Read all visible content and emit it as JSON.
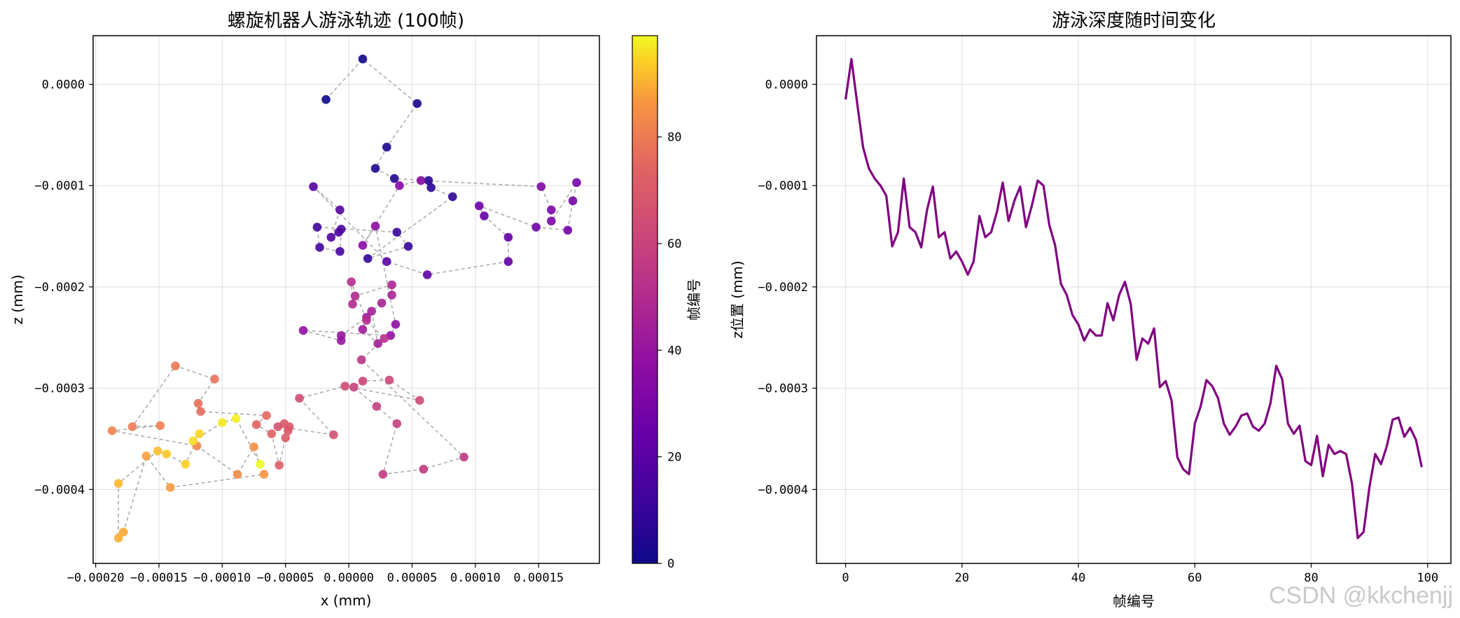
{
  "chart_data": [
    {
      "type": "scatter",
      "title": "螺旋机器人游泳轨迹 (100帧)",
      "xlabel": "x (mm)",
      "ylabel": "z (mm)",
      "xlim": [
        -0.000202,
        0.000198
      ],
      "ylim": [
        -0.000473,
        4.8e-05
      ],
      "x_ticks": [
        -0.0002,
        -0.00015,
        -0.0001,
        -5e-05,
        0.0,
        5e-05,
        0.0001,
        0.00015
      ],
      "x_tick_labels": [
        "−0.00020",
        "−0.00015",
        "−0.00010",
        "−0.00005",
        "0.00000",
        "0.00005",
        "0.00010",
        "0.00015"
      ],
      "y_ticks": [
        0.0,
        -0.0001,
        -0.0002,
        -0.0003,
        -0.0004
      ],
      "y_tick_labels": [
        "0.0000",
        "−0.0001",
        "−0.0002",
        "−0.0003",
        "−0.0004"
      ],
      "grid": true,
      "colormap": "plasma",
      "colorbar": {
        "label": "帧编号",
        "range": [
          0,
          99
        ],
        "ticks": [
          0,
          20,
          40,
          60,
          80
        ],
        "tick_labels": [
          "0",
          "20",
          "40",
          "60",
          "80"
        ]
      },
      "points": [
        [
          -1.8e-05,
          -1.5e-05
        ],
        [
          1.1e-05,
          2.5e-05
        ],
        [
          5.4e-05,
          -1.9e-05
        ],
        [
          3e-05,
          -6.2e-05
        ],
        [
          2.1e-05,
          -8.3e-05
        ],
        [
          3.6e-05,
          -9.3e-05
        ],
        [
          6.3e-05,
          -9.5e-05
        ],
        [
          6.5e-05,
          -0.000102
        ],
        [
          8.2e-05,
          -0.000111
        ],
        [
          1.5e-05,
          -0.000172
        ],
        [
          4.7e-05,
          -0.00016
        ],
        [
          3.8e-05,
          -0.000146
        ],
        [
          -2.5e-05,
          -0.000141
        ],
        [
          -2.3e-05,
          -0.000161
        ],
        [
          -7e-06,
          -0.000165
        ],
        [
          -6e-06,
          -0.000143
        ],
        [
          -8e-06,
          -0.000146
        ],
        [
          -1.4e-05,
          -0.000151
        ],
        [
          -7e-06,
          -0.000124
        ],
        [
          -2.8e-05,
          -0.000101
        ],
        [
          3e-05,
          -0.000175
        ],
        [
          6.2e-05,
          -0.000188
        ],
        [
          0.000126,
          -0.000175
        ],
        [
          0.000126,
          -0.000151
        ],
        [
          0.000107,
          -0.00013
        ],
        [
          0.000103,
          -0.00012
        ],
        [
          0.000148,
          -0.000141
        ],
        [
          0.000173,
          -0.000144
        ],
        [
          0.000177,
          -0.000115
        ],
        [
          0.00018,
          -9.7e-05
        ],
        [
          0.00016,
          -0.000135
        ],
        [
          0.00016,
          -0.000124
        ],
        [
          0.000152,
          -0.000101
        ],
        [
          5.7e-05,
          -9.5e-05
        ],
        [
          4e-05,
          -0.0001
        ],
        [
          1.1e-05,
          -0.000159
        ],
        [
          2.1e-05,
          -0.00014
        ],
        [
          3.7e-05,
          -0.000237
        ],
        [
          3.3e-05,
          -0.000248
        ],
        [
          -3.6e-05,
          -0.000243
        ],
        [
          -6e-06,
          -0.000253
        ],
        [
          -6e-06,
          -0.000248
        ],
        [
          1.4e-05,
          -0.00023
        ],
        [
          1.1e-05,
          -0.000242
        ],
        [
          2.3e-05,
          -0.000256
        ],
        [
          1.8e-05,
          -0.000224
        ],
        [
          2.6e-05,
          -0.000216
        ],
        [
          3.4e-05,
          -0.000208
        ],
        [
          3.4e-05,
          -0.000198
        ],
        [
          5e-06,
          -0.000209
        ],
        [
          3e-06,
          -0.000217
        ],
        [
          2e-06,
          -0.000195
        ],
        [
          1.4e-05,
          -0.000233
        ],
        [
          2.8e-05,
          -0.000251
        ],
        [
          1e-05,
          -0.000272
        ],
        [
          9.1e-05,
          -0.000368
        ],
        [
          5.9e-05,
          -0.00038
        ],
        [
          2.7e-05,
          -0.000385
        ],
        [
          3.8e-05,
          -0.000335
        ],
        [
          2.2e-05,
          -0.000318
        ],
        [
          4e-06,
          -0.000299
        ],
        [
          1.1e-05,
          -0.000293
        ],
        [
          3.2e-05,
          -0.000292
        ],
        [
          5.6e-05,
          -0.000312
        ],
        [
          -3e-06,
          -0.000298
        ],
        [
          -3.9e-05,
          -0.00031
        ],
        [
          -1.2e-05,
          -0.000346
        ],
        [
          -5.6e-05,
          -0.000338
        ],
        [
          -4.7e-05,
          -0.000338
        ],
        [
          -4.8e-05,
          -0.000342
        ],
        [
          -5.1e-05,
          -0.000335
        ],
        [
          -5e-05,
          -0.000349
        ],
        [
          -5.5e-05,
          -0.000376
        ],
        [
          -6.1e-05,
          -0.000345
        ],
        [
          -7.3e-05,
          -0.000336
        ],
        [
          -6.5e-05,
          -0.000327
        ],
        [
          -0.000117,
          -0.000323
        ],
        [
          -0.000119,
          -0.000315
        ],
        [
          -0.000106,
          -0.000291
        ],
        [
          -0.000137,
          -0.000278
        ],
        [
          -0.000171,
          -0.000338
        ],
        [
          -0.000149,
          -0.000337
        ],
        [
          -0.000187,
          -0.000342
        ],
        [
          -0.00012,
          -0.000357
        ],
        [
          -8.8e-05,
          -0.000385
        ],
        [
          -7.5e-05,
          -0.000358
        ],
        [
          -6.7e-05,
          -0.000385
        ],
        [
          -0.000141,
          -0.000398
        ],
        [
          -0.00016,
          -0.000367
        ],
        [
          -0.000178,
          -0.000442
        ],
        [
          -0.000182,
          -0.000448
        ],
        [
          -0.000182,
          -0.000394
        ],
        [
          -0.000151,
          -0.000362
        ],
        [
          -0.000144,
          -0.000365
        ],
        [
          -0.000129,
          -0.000375
        ],
        [
          -0.000118,
          -0.000345
        ],
        [
          -0.000123,
          -0.000352
        ],
        [
          -0.0001,
          -0.000334
        ],
        [
          -8.9e-05,
          -0.00033
        ],
        [
          -7e-05,
          -0.000375
        ]
      ]
    },
    {
      "type": "line",
      "title": "游泳深度随时间变化",
      "xlabel": "帧编号",
      "ylabel": "z位置 (mm)",
      "xlim": [
        -5,
        104
      ],
      "ylim": [
        -0.000473,
        4.8e-05
      ],
      "x_ticks": [
        0,
        20,
        40,
        60,
        80,
        100
      ],
      "x_tick_labels": [
        "0",
        "20",
        "40",
        "60",
        "80",
        "100"
      ],
      "y_ticks": [
        0.0,
        -0.0001,
        -0.0002,
        -0.0003,
        -0.0004
      ],
      "y_tick_labels": [
        "0.0000",
        "−0.0001",
        "−0.0002",
        "−0.0003",
        "−0.0004"
      ],
      "grid": true,
      "color": "#800080",
      "series": [
        {
          "name": "z",
          "values": [
            -1.5e-05,
            2.5e-05,
            -1.9e-05,
            -6.2e-05,
            -8.3e-05,
            -9.3e-05,
            -0.0001,
            -0.00011,
            -0.00016,
            -0.000146,
            -9.3e-05,
            -0.000141,
            -0.000146,
            -0.000161,
            -0.000124,
            -0.000101,
            -0.000151,
            -0.000146,
            -0.000172,
            -0.000165,
            -0.000175,
            -0.000188,
            -0.000175,
            -0.00013,
            -0.000151,
            -0.000146,
            -0.000126,
            -9.7e-05,
            -0.000135,
            -0.000115,
            -0.000101,
            -0.000141,
            -0.00012,
            -9.5e-05,
            -0.0001,
            -0.000139,
            -0.000159,
            -0.000197,
            -0.000208,
            -0.000228,
            -0.000237,
            -0.000253,
            -0.000242,
            -0.000248,
            -0.000248,
            -0.000216,
            -0.000233,
            -0.000208,
            -0.000195,
            -0.000217,
            -0.000272,
            -0.000251,
            -0.000256,
            -0.000241,
            -0.000299,
            -0.000293,
            -0.000312,
            -0.000368,
            -0.00038,
            -0.000385,
            -0.000335,
            -0.000318,
            -0.000292,
            -0.000298,
            -0.00031,
            -0.000335,
            -0.000346,
            -0.000338,
            -0.000327,
            -0.000325,
            -0.000338,
            -0.000342,
            -0.000335,
            -0.000315,
            -0.000278,
            -0.000291,
            -0.000335,
            -0.000345,
            -0.000337,
            -0.000372,
            -0.000376,
            -0.000347,
            -0.000387,
            -0.000356,
            -0.000365,
            -0.000362,
            -0.000365,
            -0.000394,
            -0.000448,
            -0.000442,
            -0.000398,
            -0.000365,
            -0.000375,
            -0.000357,
            -0.000331,
            -0.000329,
            -0.000348,
            -0.000339,
            -0.000351,
            -0.000378
          ]
        }
      ]
    }
  ],
  "watermark": "CSDN @kkchenjj"
}
